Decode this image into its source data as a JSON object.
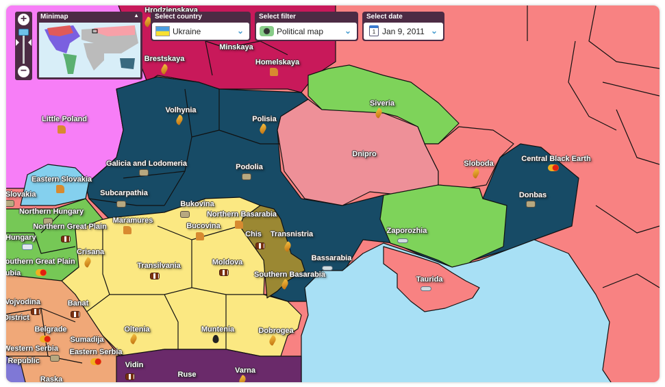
{
  "colors": {
    "ukraine": "#174b66",
    "poland": "#f77ef7",
    "belarus": "#c8195a",
    "russia": "#f88282",
    "green_ukr": "#7ed35a",
    "dnipro": "#ee9098",
    "romania": "#fbe882",
    "moldova": "#9b8833",
    "hungary": "#76c856",
    "serbia": "#f0a878",
    "bulgaria": "#6a2a6a",
    "slovakia": "#84d0ee",
    "sea": "#a8e0f5"
  },
  "controls": {
    "zoom_in": "+",
    "zoom_out": "−",
    "minimap": {
      "title": "Minimap",
      "toggle": "▲"
    },
    "country": {
      "label": "Select country",
      "value": "Ukraine",
      "icon": "ukraine-flag-icon"
    },
    "filter": {
      "label": "Select filter",
      "value": "Political map",
      "icon": "globe-icon"
    },
    "date": {
      "label": "Select date",
      "value": "Jan 9, 2011",
      "icon": "calendar-icon",
      "day": "1"
    },
    "chevron": "⌄"
  },
  "regions": [
    {
      "name": "Hrodzienskaya",
      "icon": "grain"
    },
    {
      "name": "Minskaya"
    },
    {
      "name": "Brestskaya",
      "icon": "grain"
    },
    {
      "name": "Homelskaya",
      "icon": "deer"
    },
    {
      "name": "Little Poland",
      "icon": "deer"
    },
    {
      "name": "Volhynia",
      "icon": "grain"
    },
    {
      "name": "Polisia",
      "icon": "grain"
    },
    {
      "name": "Siveria",
      "icon": "grain"
    },
    {
      "name": "Dnipro"
    },
    {
      "name": "Sloboda",
      "icon": "grain"
    },
    {
      "name": "Central Black Earth",
      "icon": "fruit"
    },
    {
      "name": "Galicia and Lodomeria",
      "icon": "iron"
    },
    {
      "name": "Podolia",
      "icon": "iron"
    },
    {
      "name": "Donbas",
      "icon": "iron"
    },
    {
      "name": "Eastern Slovakia",
      "icon": "deer"
    },
    {
      "name": "al Slovakia",
      "icon": "iron"
    },
    {
      "name": "Subcarpathia",
      "icon": "iron"
    },
    {
      "name": "Bukovina",
      "icon": "iron"
    },
    {
      "name": "Northern Hungary",
      "icon": "iron"
    },
    {
      "name": "Maramures",
      "icon": "deer"
    },
    {
      "name": "Northern Basarabia",
      "icon": "deer"
    },
    {
      "name": "Bucovina",
      "icon": "deer"
    },
    {
      "name": "Northern Great Plain",
      "icon": "cow"
    },
    {
      "name": "ral Hungary",
      "icon": "car"
    },
    {
      "name": "Chis",
      "icon": "cow"
    },
    {
      "name": "Transnistria",
      "icon": "grain"
    },
    {
      "name": "Zaporozhia",
      "icon": "fish"
    },
    {
      "name": "Crisana",
      "icon": "grain"
    },
    {
      "name": "Transilvania",
      "icon": "cow"
    },
    {
      "name": "Moldova",
      "icon": "cow"
    },
    {
      "name": "Bassarabia",
      "icon": "fish"
    },
    {
      "name": "Southern Great Plain",
      "icon": "fruit"
    },
    {
      "name": "ubia"
    },
    {
      "name": "Southern Basarabia",
      "icon": "grain"
    },
    {
      "name": "Taurida",
      "icon": "fish"
    },
    {
      "name": "Vojvodina",
      "icon": "cow"
    },
    {
      "name": "Banat",
      "icon": "cow"
    },
    {
      "name": "District"
    },
    {
      "name": "Belgrade",
      "icon": "fruit"
    },
    {
      "name": "Oltenia",
      "icon": "grain"
    },
    {
      "name": "Muntenia",
      "icon": "oil"
    },
    {
      "name": "Dobrogea",
      "icon": "grain"
    },
    {
      "name": "Western Serbia",
      "icon": "iron"
    },
    {
      "name": "Sumadija"
    },
    {
      "name": "Eastern Serbia",
      "icon": "fruit"
    },
    {
      "name": "a Republic"
    },
    {
      "name": "Vidin",
      "icon": "cow"
    },
    {
      "name": "Ruse",
      "icon": "grain"
    },
    {
      "name": "Varna",
      "icon": "grain"
    },
    {
      "name": "Raska"
    }
  ]
}
